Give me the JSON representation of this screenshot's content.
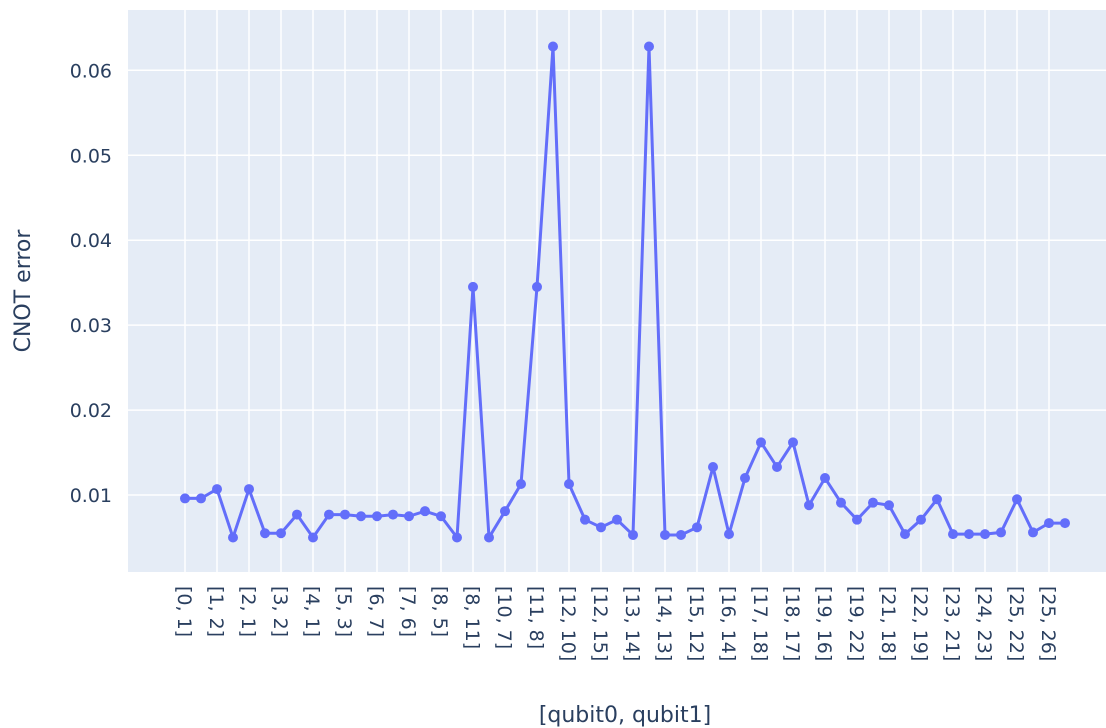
{
  "chart_data": {
    "type": "line",
    "x_label": "[qubit0, qubit1]",
    "y_label": "CNOT error",
    "categories": [
      "[0, 1]",
      null,
      "[1, 2]",
      null,
      "[2, 1]",
      null,
      "[3, 2]",
      null,
      "[4, 1]",
      null,
      "[5, 3]",
      null,
      "[6, 7]",
      null,
      "[7, 6]",
      null,
      "[8, 5]",
      null,
      "[8, 11]",
      null,
      "[10, 7]",
      null,
      "[11, 8]",
      null,
      "[12, 10]",
      null,
      "[12, 15]",
      null,
      "[13, 14]",
      null,
      "[14, 13]",
      null,
      "[15, 12]",
      null,
      "[16, 14]",
      null,
      "[17, 18]",
      null,
      "[18, 17]",
      null,
      "[19, 16]",
      null,
      "[19, 22]",
      null,
      "[21, 18]",
      null,
      "[22, 19]",
      null,
      "[23, 21]",
      null,
      "[24, 23]",
      null,
      "[25, 22]",
      null,
      "[25, 26]",
      null
    ],
    "series": [
      {
        "color": "#636efa",
        "values": [
          0.0096,
          0.0096,
          0.0107,
          0.005,
          0.0107,
          0.0055,
          0.0055,
          0.0077,
          0.005,
          0.0077,
          0.0077,
          0.0075,
          0.0075,
          0.0077,
          0.0075,
          0.0081,
          0.0075,
          0.005,
          0.0345,
          0.005,
          0.0081,
          0.0113,
          0.0345,
          0.0628,
          0.0113,
          0.0071,
          0.0062,
          0.0071,
          0.0053,
          0.0628,
          0.0053,
          0.0053,
          0.0062,
          0.0133,
          0.0054,
          0.012,
          0.0162,
          0.0133,
          0.0162,
          0.0088,
          0.012,
          0.0091,
          0.0071,
          0.0091,
          0.0088,
          0.0054,
          0.0071,
          0.0095,
          0.0054,
          0.0054,
          0.0054,
          0.0056,
          0.0095,
          0.0056,
          0.0067,
          0.0067
        ]
      }
    ],
    "ylim": [
      0.00094,
      0.0671
    ],
    "yticks": [
      0.01,
      0.02,
      0.03,
      0.04,
      0.05,
      0.06
    ],
    "grid": true
  }
}
